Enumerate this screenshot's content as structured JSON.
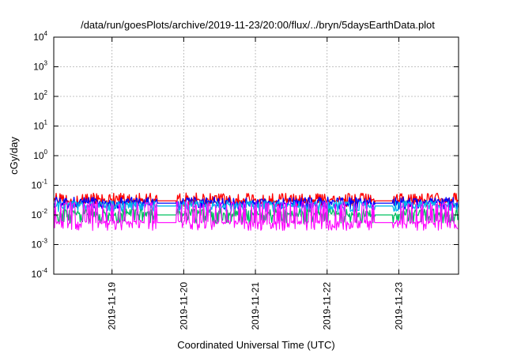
{
  "chart_data": {
    "type": "line",
    "title": "/data/run/goesPlots/archive/2019-11-23/20:00/flux/../bryn/5daysEarthData.plot",
    "xlabel": "Coordinated Universal Time (UTC)",
    "ylabel": "cGy/day",
    "yscale": "log",
    "ylim": [
      0.0001,
      10000
    ],
    "xlim": [
      "2019-11-18T04:30",
      "2019-11-23T20:00"
    ],
    "y_ticks": [
      {
        "base": "10",
        "exp": "-4",
        "value": 0.0001
      },
      {
        "base": "10",
        "exp": "-3",
        "value": 0.001
      },
      {
        "base": "10",
        "exp": "-2",
        "value": 0.01
      },
      {
        "base": "10",
        "exp": "-1",
        "value": 0.1
      },
      {
        "base": "10",
        "exp": "0",
        "value": 1
      },
      {
        "base": "10",
        "exp": "1",
        "value": 10
      },
      {
        "base": "10",
        "exp": "2",
        "value": 100
      },
      {
        "base": "10",
        "exp": "3",
        "value": 1000
      },
      {
        "base": "10",
        "exp": "4",
        "value": 10000
      }
    ],
    "x_ticks": [
      {
        "label": "2019-11-19",
        "value": "2019-11-19T00:00"
      },
      {
        "label": "2019-11-20",
        "value": "2019-11-20T00:00"
      },
      {
        "label": "2019-11-21",
        "value": "2019-11-21T00:00"
      },
      {
        "label": "2019-11-22",
        "value": "2019-11-22T00:00"
      },
      {
        "label": "2019-11-23",
        "value": "2019-11-23T00:00"
      }
    ],
    "grid": true,
    "legend": "none",
    "gaps": [
      [
        "2019-11-19T15:00",
        "2019-11-19T21:30"
      ],
      [
        "2019-11-22T16:00",
        "2019-11-22T22:00"
      ]
    ],
    "series": [
      {
        "color": "#ff0000",
        "level": 0.03,
        "peak": 0.055,
        "trough": 0.022
      },
      {
        "color": "#0000ff",
        "level": 0.025,
        "peak": 0.04,
        "trough": 0.018
      },
      {
        "color": "#00b7eb",
        "level": 0.02,
        "peak": 0.03,
        "trough": 0.014
      },
      {
        "color": "#00c060",
        "level": 0.01,
        "peak": 0.016,
        "trough": 0.006
      },
      {
        "color": "#ff00ff",
        "level": 0.0055,
        "peak": 0.028,
        "trough": 0.0035
      }
    ]
  }
}
